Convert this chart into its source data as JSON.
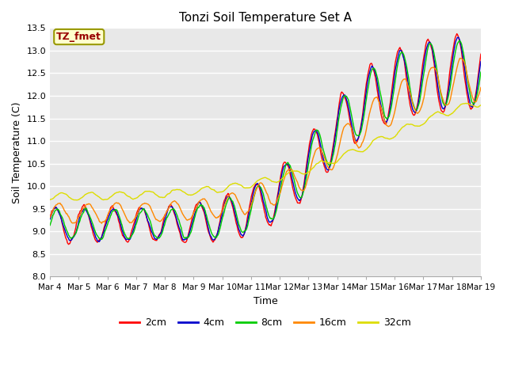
{
  "title": "Tonzi Soil Temperature Set A",
  "xlabel": "Time",
  "ylabel": "Soil Temperature (C)",
  "ylim": [
    8.0,
    13.5
  ],
  "legend_label": "TZ_fmet",
  "series_labels": [
    "2cm",
    "4cm",
    "8cm",
    "16cm",
    "32cm"
  ],
  "series_colors": [
    "#ff0000",
    "#0000cc",
    "#00cc00",
    "#ff8800",
    "#dddd00"
  ],
  "fig_bg": "#ffffff",
  "plot_bg": "#e8e8e8",
  "xtick_labels": [
    "Mar 4",
    "Mar 5",
    "Mar 6",
    "Mar 7",
    "Mar 8",
    "Mar 9",
    "Mar 10",
    "Mar 11",
    "Mar 12",
    "Mar 13",
    "Mar 14",
    "Mar 15",
    "Mar 16",
    "Mar 17",
    "Mar 18",
    "Mar 19"
  ],
  "yticks": [
    8.0,
    8.5,
    9.0,
    9.5,
    10.0,
    10.5,
    11.0,
    11.5,
    12.0,
    12.5,
    13.0,
    13.5
  ],
  "n_points": 720,
  "days": 15
}
